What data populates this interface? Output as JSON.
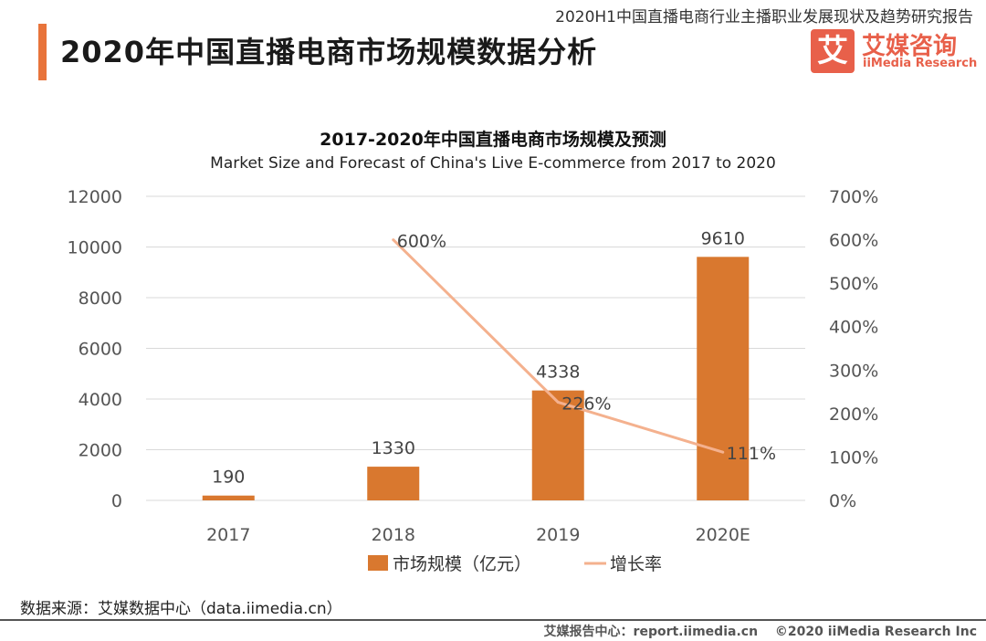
{
  "header": {
    "report_title": "2020H1中国直播电商行业主播职业发展现状及趋势研究报告",
    "page_title": "2020年中国直播电商市场规模数据分析"
  },
  "logo": {
    "mark": "艾",
    "name_cn": "艾媒咨询",
    "name_en": "iiMedia Research"
  },
  "colors": {
    "accent": "#e8743b",
    "bar": "#d9782f",
    "line": "#f4b18e",
    "logo": "#e8604a"
  },
  "chart_data": {
    "type": "bar",
    "title": "2017-2020年中国直播电商市场规模及预测",
    "subtitle": "Market Size and Forecast of China's Live E-commerce from 2017 to 2020",
    "categories": [
      "2017",
      "2018",
      "2019",
      "2020E"
    ],
    "series": [
      {
        "name": "市场规模（亿元）",
        "type": "bar",
        "axis": "left",
        "values": [
          190,
          1330,
          4338,
          9610
        ],
        "labels": [
          "190",
          "1330",
          "4338",
          "9610"
        ]
      },
      {
        "name": "增长率",
        "type": "line",
        "axis": "right",
        "values": [
          null,
          600,
          226,
          111
        ],
        "labels": [
          "",
          "600%",
          "226%",
          "111%"
        ]
      }
    ],
    "y_left": {
      "min": 0,
      "max": 12000,
      "ticks": [
        "0",
        "2000",
        "4000",
        "6000",
        "8000",
        "10000",
        "12000"
      ]
    },
    "y_right": {
      "min": 0,
      "max": 700,
      "ticks": [
        "0%",
        "100%",
        "200%",
        "300%",
        "400%",
        "500%",
        "600%",
        "700%"
      ]
    },
    "grid": true,
    "legend_position": "bottom"
  },
  "footer": {
    "source": "数据来源：艾媒数据中心（data.iimedia.cn）",
    "report_center": "艾媒报告中心：report.iimedia.cn",
    "copyright": "©2020  iiMedia Research  Inc"
  }
}
